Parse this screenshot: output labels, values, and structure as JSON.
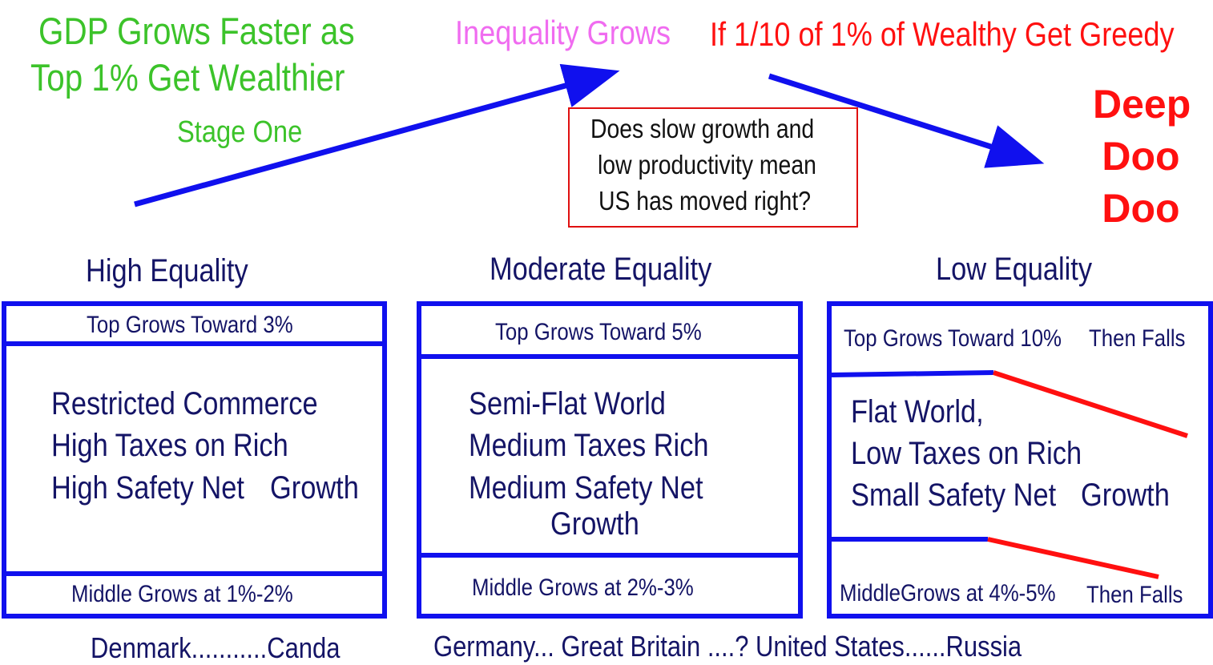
{
  "top": {
    "headline_line1": "GDP Grows Faster as",
    "headline_line2": "Top 1% Get Wealthier",
    "stage_one": "Stage One",
    "inequality": "Inequality Grows",
    "greedy": "If 1/10 of 1% of Wealthy Get Greedy",
    "deep": "Deep",
    "doo1": "Doo",
    "doo2": "Doo",
    "question_line1": "Does slow growth and",
    "question_line2": "low productivity mean",
    "question_line3": "US has moved right?"
  },
  "columns": [
    {
      "heading": "High Equality",
      "top": "Top Grows Toward 3%",
      "body1": "Restricted Commerce",
      "body2": "High Taxes on Rich",
      "body3": "High Safety Net",
      "growth": "Growth",
      "middle": "Middle Grows at 1%-2%"
    },
    {
      "heading": "Moderate Equality",
      "top": "Top Grows Toward 5%",
      "body1": "Semi-Flat World",
      "body2": "Medium Taxes Rich",
      "body3": "Medium Safety Net",
      "growth": "Growth",
      "middle": "Middle Grows at 2%-3%"
    },
    {
      "heading": "Low Equality",
      "top": "Top Grows Toward 10%",
      "top_falls": "Then Falls",
      "body1": "Flat World,",
      "body2": "Low Taxes on Rich",
      "body3": "Small Safety Net",
      "growth": "Growth",
      "middle": "MiddleGrows at 4%-5%",
      "middle_falls": "Then Falls"
    }
  ],
  "countries": {
    "left": "Denmark...........Canda",
    "right": "Germany... Great Britain ....? United States......Russia"
  },
  "colors": {
    "arrow": "#1010ee",
    "green": "#3cc32a",
    "pink": "#f06cf0",
    "red": "#ff1010",
    "navy": "#141466"
  }
}
